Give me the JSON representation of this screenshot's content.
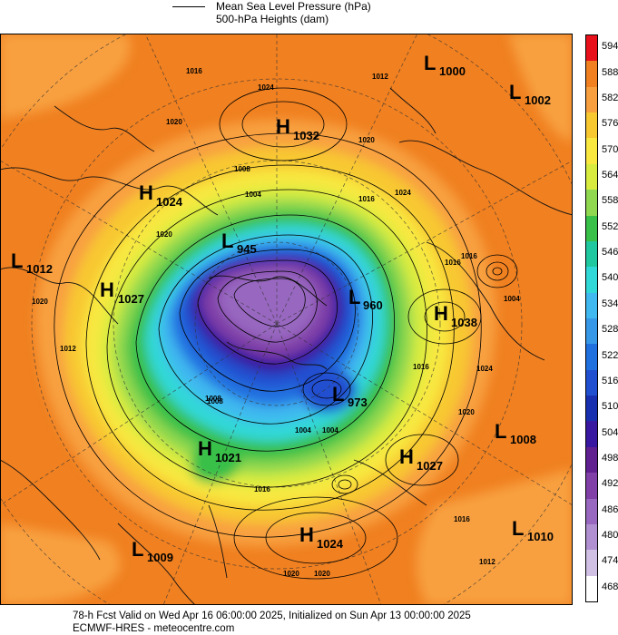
{
  "legend": {
    "mslp_label": "Mean Sea Level Pressure (hPa)",
    "height_label": "500-hPa Heights (dam)"
  },
  "colorbar": {
    "levels": [
      "594",
      "588",
      "582",
      "576",
      "570",
      "564",
      "558",
      "552",
      "546",
      "540",
      "534",
      "528",
      "522",
      "516",
      "510",
      "504",
      "498",
      "492",
      "486",
      "480",
      "474",
      "468"
    ],
    "colors": [
      "#e8101a",
      "#f08020",
      "#f8a040",
      "#f8c830",
      "#f8e840",
      "#d8ec40",
      "#90d850",
      "#38c048",
      "#20c8a0",
      "#30d8d8",
      "#40b8f0",
      "#3898e8",
      "#2070e0",
      "#2050d0",
      "#1830b0",
      "#3818a0",
      "#602090",
      "#8040a8",
      "#9868c0",
      "#b090d0",
      "#d0c0e4",
      "#ffffff"
    ]
  },
  "systems": [
    {
      "type": "L",
      "value": "1000"
    },
    {
      "type": "L",
      "value": "1002"
    },
    {
      "type": "H",
      "value": "1032"
    },
    {
      "type": "H",
      "value": "1024"
    },
    {
      "type": "L",
      "value": "1012"
    },
    {
      "type": "L",
      "value": "945"
    },
    {
      "type": "H",
      "value": "1027"
    },
    {
      "type": "L",
      "value": "960"
    },
    {
      "type": "H",
      "value": "1038"
    },
    {
      "type": "L",
      "value": "973"
    },
    {
      "type": "L",
      "value": "1008"
    },
    {
      "type": "H",
      "value": "1021"
    },
    {
      "type": "H",
      "value": "1027"
    },
    {
      "type": "H",
      "value": "1024"
    },
    {
      "type": "L",
      "value": "1009"
    },
    {
      "type": "L",
      "value": "1010"
    }
  ],
  "isobar_labels": [
    "1016",
    "1024",
    "1020",
    "1012",
    "1008",
    "1004",
    "1016",
    "1020",
    "1024",
    "1016",
    "1020",
    "1012",
    "1008",
    "1004",
    "1016",
    "1020",
    "1024",
    "1016",
    "1004",
    "1020",
    "1020",
    "1016",
    "1012",
    "1016",
    "1008",
    "1004",
    "1020"
  ],
  "footer": {
    "line1": "78-h Fcst Valid on Wed Apr 16 06:00:00 2025, Initialized on Sun Apr 13 00:00:00 2025",
    "line2": "ECMWF-HRES - meteocentre.com"
  }
}
